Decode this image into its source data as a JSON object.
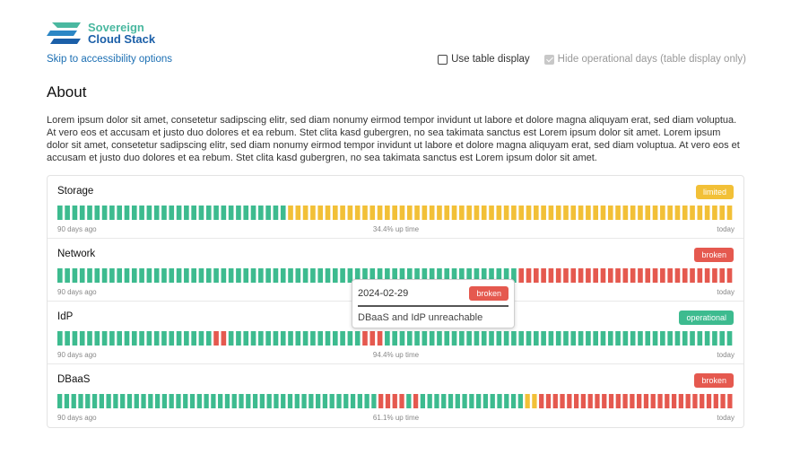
{
  "logo": {
    "line1": "Sovereign",
    "line2": "Cloud Stack",
    "color_primary": "#1b5fa8",
    "color_accent": "#4ab8a0"
  },
  "header": {
    "skip_link": "Skip to accessibility options",
    "toggles": [
      {
        "label": "Use table display",
        "checked": false,
        "disabled": false
      },
      {
        "label": "Hide operational days (table display only)",
        "checked": true,
        "disabled": true
      }
    ]
  },
  "about": {
    "title": "About",
    "text": "Lorem ipsum dolor sit amet, consetetur sadipscing elitr, sed diam nonumy eirmod tempor invidunt ut labore et dolore magna aliquyam erat, sed diam voluptua. At vero eos et accusam et justo duo dolores et ea rebum. Stet clita kasd gubergren, no sea takimata sanctus est Lorem ipsum dolor sit amet. Lorem ipsum dolor sit amet, consetetur sadipscing elitr, sed diam nonumy eirmod tempor invidunt ut labore et dolore magna aliquyam erat, sed diam voluptua. At vero eos et accusam et justo duo dolores et ea rebum. Stet clita kasd gubergren, no sea takimata sanctus est Lorem ipsum dolor sit amet."
  },
  "colors": {
    "operational": "#3dbb8f",
    "limited": "#f2c037",
    "broken": "#e5594f"
  },
  "services": [
    {
      "name": "Storage",
      "status": "limited",
      "start_label": "90 days ago",
      "uptime": "34.4% up time",
      "end_label": "today",
      "days": "ooooooooooooooooooooooooooooooollllllllllllllllllllllllllllllllllllllllllllllllllllllllllll"
    },
    {
      "name": "Network",
      "status": "broken",
      "start_label": "90 days ago",
      "uptime": "",
      "end_label": "today",
      "days": "oooooooooooooooooooooooooooooooooooooooooooooooooooooooooooooobbbbbbbbbbbbbbbbbbbbbbbbbbbbb"
    },
    {
      "name": "IdP",
      "status": "operational",
      "start_label": "90 days ago",
      "uptime": "94.4% up time",
      "end_label": "today",
      "days": "ooooooooooooooooooooobboooooooooooooooooobbbooooooooooooooooooooooooooooooooooooooooooooooo"
    },
    {
      "name": "DBaaS",
      "status": "broken",
      "start_label": "90 days ago",
      "uptime": "61.1% up time",
      "end_label": "today",
      "days": "oooooooooooooooooooooooooooooooooooooooooooooobbbbobooooooooooooooollbbbbbbbbbbbbbbbbbbbbbbbbbbbb"
    }
  ],
  "tooltip": {
    "date": "2024-02-29",
    "status": "broken",
    "message": "DBaaS and IdP unreachable"
  }
}
